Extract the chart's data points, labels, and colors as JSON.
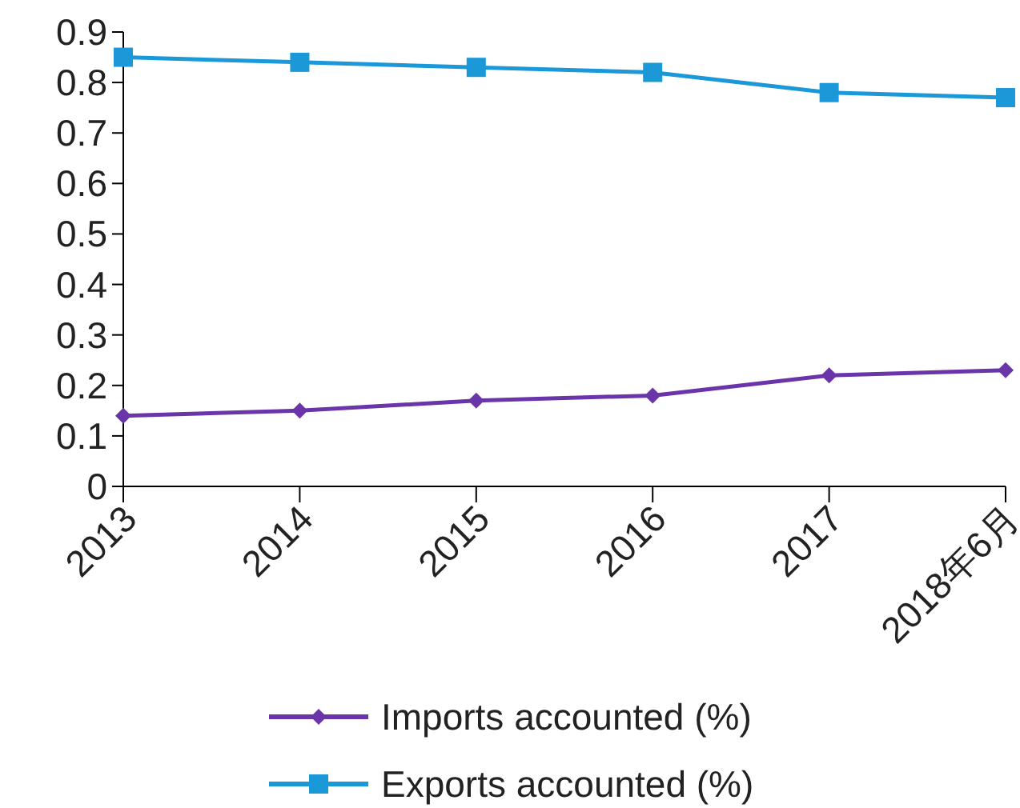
{
  "chart_data": {
    "type": "line",
    "categories": [
      "2013",
      "2014",
      "2015",
      "2016",
      "2017",
      "2018年6月"
    ],
    "series": [
      {
        "name": "Imports accounted (%)",
        "color": "#6a35a8",
        "marker": "diamond",
        "values": [
          0.14,
          0.15,
          0.17,
          0.18,
          0.22,
          0.23
        ]
      },
      {
        "name": "Exports accounted (%)",
        "color": "#1b98d8",
        "marker": "square",
        "values": [
          0.85,
          0.84,
          0.83,
          0.82,
          0.78,
          0.77
        ]
      }
    ],
    "ylim": [
      0,
      0.9
    ],
    "yticks": [
      0,
      0.1,
      0.2,
      0.3,
      0.4,
      0.5,
      0.6,
      0.7,
      0.8,
      0.9
    ],
    "grid": false,
    "legend": "bottom",
    "line_style": "solid"
  }
}
